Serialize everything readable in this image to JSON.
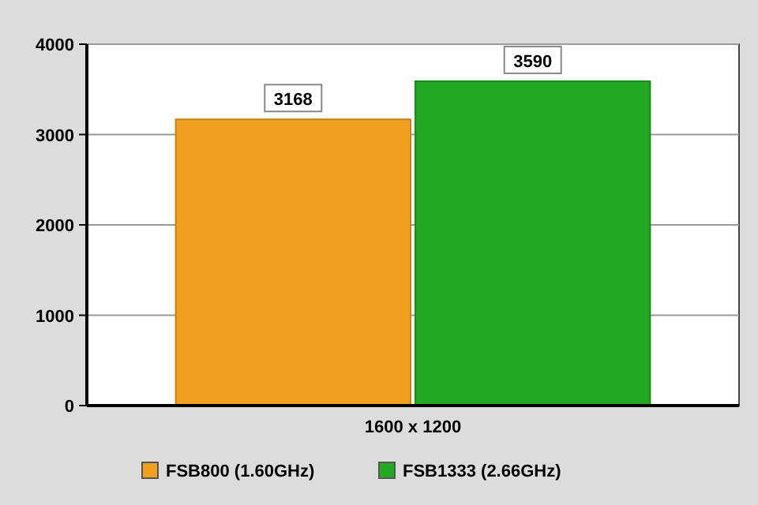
{
  "chart_data": {
    "type": "bar",
    "categories": [
      "1600 x 1200"
    ],
    "series": [
      {
        "name": "FSB800 (1.60GHz)",
        "color": "#f0a020",
        "values": [
          3168
        ]
      },
      {
        "name": "FSB1333 (2.66GHz)",
        "color": "#22a822",
        "values": [
          3590
        ]
      }
    ],
    "ylim": [
      0,
      4000
    ],
    "yticks": [
      0,
      1000,
      2000,
      3000,
      4000
    ],
    "grid": "y",
    "legend": "bottom",
    "data_labels": true
  }
}
